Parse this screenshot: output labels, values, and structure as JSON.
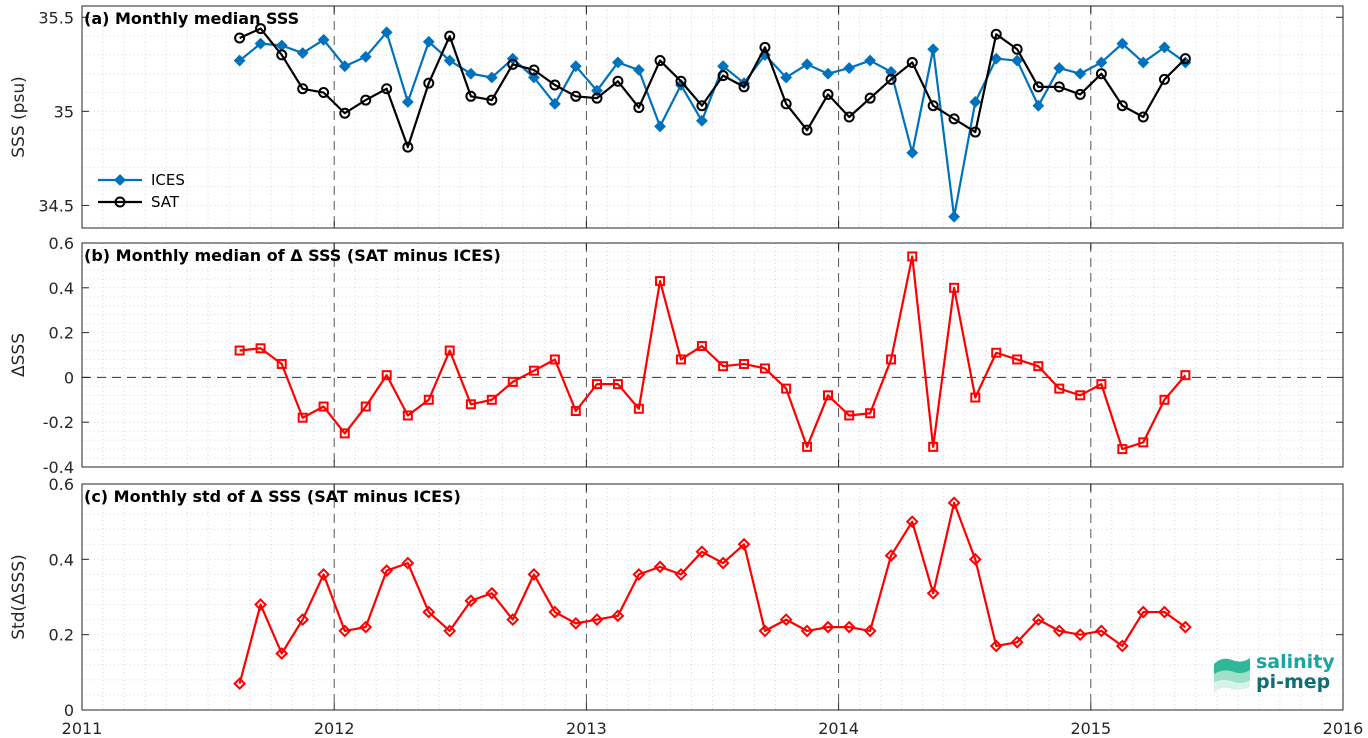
{
  "colors": {
    "ices": "#0072bd",
    "sat": "#000000",
    "delta": "#ff0000",
    "grid": "#d9d9d9",
    "dash": "#555555"
  },
  "logo": {
    "line1": "salinity",
    "line2": "pi-mep"
  },
  "x_ticks": [
    "2011",
    "2012",
    "2013",
    "2014",
    "2015",
    "2016"
  ],
  "chart_data": [
    {
      "type": "line",
      "title": "(a) Monthly median SSS",
      "ylabel": "SSS (psu)",
      "xlim": [
        2011,
        2016
      ],
      "ylim": [
        34.38,
        35.56
      ],
      "y_ticks": [
        "34.5",
        "35",
        "35.5"
      ],
      "y_tick_values": [
        34.5,
        35,
        35.5
      ],
      "legend": [
        "ICES",
        "SAT"
      ],
      "legend_position": "lower-left",
      "grid": true,
      "x": [
        2011.625,
        2011.708,
        2011.792,
        2011.875,
        2011.958,
        2012.042,
        2012.125,
        2012.208,
        2012.292,
        2012.375,
        2012.458,
        2012.542,
        2012.625,
        2012.708,
        2012.792,
        2012.875,
        2012.958,
        2013.042,
        2013.125,
        2013.208,
        2013.292,
        2013.375,
        2013.458,
        2013.542,
        2013.625,
        2013.708,
        2013.792,
        2013.875,
        2013.958,
        2014.042,
        2014.125,
        2014.208,
        2014.292,
        2014.375,
        2014.458,
        2014.542,
        2014.625,
        2014.708,
        2014.792,
        2014.875,
        2014.958,
        2015.042,
        2015.125,
        2015.208,
        2015.292,
        2015.375
      ],
      "series": [
        {
          "name": "ICES",
          "marker": "diamond",
          "values": [
            35.27,
            35.36,
            35.35,
            35.31,
            35.38,
            35.24,
            35.29,
            35.42,
            35.05,
            35.37,
            35.27,
            35.2,
            35.18,
            35.28,
            35.18,
            35.04,
            35.24,
            35.11,
            35.26,
            35.22,
            34.92,
            35.14,
            34.95,
            35.24,
            35.15,
            35.3,
            35.18,
            35.25,
            35.2,
            35.23,
            35.27,
            35.21,
            34.78,
            35.33,
            34.44,
            35.05,
            35.28,
            35.27,
            35.03,
            35.23,
            35.2,
            35.26,
            35.36,
            35.26,
            35.34,
            35.26
          ]
        },
        {
          "name": "SAT",
          "marker": "circle",
          "values": [
            35.39,
            35.44,
            35.3,
            35.12,
            35.1,
            34.99,
            35.06,
            35.12,
            34.81,
            35.15,
            35.4,
            35.08,
            35.06,
            35.25,
            35.22,
            35.14,
            35.08,
            35.07,
            35.16,
            35.02,
            35.27,
            35.16,
            35.03,
            35.19,
            35.13,
            35.34,
            35.04,
            34.9,
            35.09,
            34.97,
            35.07,
            35.17,
            35.26,
            35.03,
            34.96,
            34.89,
            35.41,
            35.33,
            35.13,
            35.13,
            35.09,
            35.2,
            35.03,
            34.97,
            35.17,
            35.28
          ]
        }
      ]
    },
    {
      "type": "line",
      "title": "(b) Monthly median of Δ SSS (SAT minus ICES)",
      "ylabel": "ΔSSS",
      "xlim": [
        2011,
        2016
      ],
      "ylim": [
        -0.4,
        0.6
      ],
      "y_ticks": [
        "-0.4",
        "-0.2",
        "0",
        "0.2",
        "0.4",
        "0.6"
      ],
      "y_tick_values": [
        -0.4,
        -0.2,
        0,
        0.2,
        0.4,
        0.6
      ],
      "zero_line": true,
      "grid": true,
      "x": [
        2011.625,
        2011.708,
        2011.792,
        2011.875,
        2011.958,
        2012.042,
        2012.125,
        2012.208,
        2012.292,
        2012.375,
        2012.458,
        2012.542,
        2012.625,
        2012.708,
        2012.792,
        2012.875,
        2012.958,
        2013.042,
        2013.125,
        2013.208,
        2013.292,
        2013.375,
        2013.458,
        2013.542,
        2013.625,
        2013.708,
        2013.792,
        2013.875,
        2013.958,
        2014.042,
        2014.125,
        2014.208,
        2014.292,
        2014.375,
        2014.458,
        2014.542,
        2014.625,
        2014.708,
        2014.792,
        2014.875,
        2014.958,
        2015.042,
        2015.125,
        2015.208,
        2015.292,
        2015.375
      ],
      "series": [
        {
          "marker": "square",
          "values": [
            0.12,
            0.13,
            0.06,
            -0.18,
            -0.13,
            -0.25,
            -0.13,
            0.01,
            -0.17,
            -0.1,
            0.12,
            -0.12,
            -0.1,
            -0.02,
            0.03,
            0.08,
            -0.15,
            -0.03,
            -0.03,
            -0.14,
            0.43,
            0.08,
            0.14,
            0.05,
            0.06,
            0.04,
            -0.05,
            -0.31,
            -0.08,
            -0.17,
            -0.16,
            0.08,
            0.54,
            -0.31,
            0.4,
            -0.09,
            0.11,
            0.08,
            0.05,
            -0.05,
            -0.08,
            -0.03,
            -0.32,
            -0.29,
            -0.1,
            0.01
          ]
        }
      ]
    },
    {
      "type": "line",
      "title": "(c) Monthly std of Δ SSS (SAT minus ICES)",
      "ylabel": "Std(ΔSSS)",
      "xlim": [
        2011,
        2016
      ],
      "ylim": [
        0,
        0.6
      ],
      "y_ticks": [
        "0",
        "0.2",
        "0.4",
        "0.6"
      ],
      "y_tick_values": [
        0,
        0.2,
        0.4,
        0.6
      ],
      "grid": true,
      "x": [
        2011.625,
        2011.708,
        2011.792,
        2011.875,
        2011.958,
        2012.042,
        2012.125,
        2012.208,
        2012.292,
        2012.375,
        2012.458,
        2012.542,
        2012.625,
        2012.708,
        2012.792,
        2012.875,
        2012.958,
        2013.042,
        2013.125,
        2013.208,
        2013.292,
        2013.375,
        2013.458,
        2013.542,
        2013.625,
        2013.708,
        2013.792,
        2013.875,
        2013.958,
        2014.042,
        2014.125,
        2014.208,
        2014.292,
        2014.375,
        2014.458,
        2014.542,
        2014.625,
        2014.708,
        2014.792,
        2014.875,
        2014.958,
        2015.042,
        2015.125,
        2015.208,
        2015.292,
        2015.375
      ],
      "series": [
        {
          "marker": "diamond",
          "values": [
            0.07,
            0.28,
            0.15,
            0.24,
            0.36,
            0.21,
            0.22,
            0.37,
            0.39,
            0.26,
            0.21,
            0.29,
            0.31,
            0.24,
            0.36,
            0.26,
            0.23,
            0.24,
            0.25,
            0.36,
            0.38,
            0.36,
            0.42,
            0.39,
            0.44,
            0.21,
            0.24,
            0.21,
            0.22,
            0.22,
            0.21,
            0.41,
            0.5,
            0.31,
            0.55,
            0.4,
            0.17,
            0.18,
            0.24,
            0.21,
            0.2,
            0.21,
            0.17,
            0.26,
            0.26,
            0.22
          ]
        }
      ]
    }
  ]
}
